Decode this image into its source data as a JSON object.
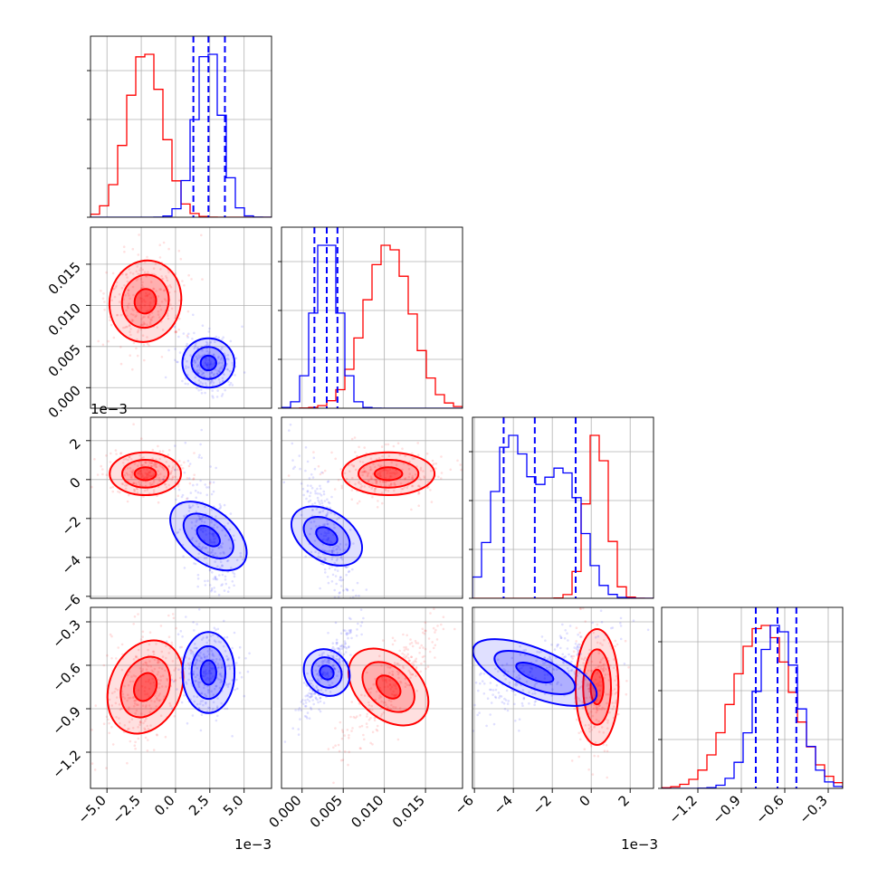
{
  "chart_data": {
    "type": "corner",
    "colors": {
      "red": "#ff0000",
      "blue": "#0000ff",
      "grid": "#b0b0b0"
    },
    "series": [
      {
        "color": "#ff0000"
      },
      {
        "color": "#0000ff"
      }
    ],
    "params": [
      {
        "range": [
          -6.2,
          7.0
        ],
        "ticks": [
          "-5.0",
          "-2.5",
          "0.0",
          "2.5",
          "5.0"
        ],
        "tick_values": [
          -5.0,
          -2.5,
          0.0,
          2.5,
          5.0
        ],
        "offset": "1e−3",
        "dist": {
          "red": {
            "mean": -2.2,
            "sd": 1.3
          },
          "blue": {
            "mean": 2.4,
            "sd": 0.95
          }
        },
        "quantiles_blue": [
          1.3,
          2.4,
          3.6
        ]
      },
      {
        "range": [
          -0.0025,
          0.0195
        ],
        "ticks": [
          "0.000",
          "0.005",
          "0.010",
          "0.015"
        ],
        "tick_values": [
          0.0,
          0.005,
          0.01,
          0.015
        ],
        "offset": "",
        "dist": {
          "red": {
            "mean": 0.0105,
            "sd": 0.0028
          },
          "blue": {
            "mean": 0.003,
            "sd": 0.0015
          }
        },
        "quantiles_blue": [
          0.0015,
          0.003,
          0.0043
        ]
      },
      {
        "range": [
          -6.1,
          3.2
        ],
        "ticks": [
          "-6",
          "-4",
          "-2",
          "0",
          "2"
        ],
        "tick_values": [
          -6,
          -4,
          -2,
          0,
          2
        ],
        "offset": "1e−3",
        "dist": {
          "red": {
            "mean": 0.3,
            "sd": 0.55
          },
          "blue": {
            "mean": -2.9,
            "sd": 1.7
          }
        },
        "quantiles_blue": [
          -4.5,
          -2.9,
          -0.8
        ]
      },
      {
        "range": [
          -1.45,
          -0.2
        ],
        "ticks": [
          "-1.2",
          "-0.9",
          "-0.6",
          "-0.3"
        ],
        "tick_values": [
          -1.2,
          -0.9,
          -0.6,
          -0.3
        ],
        "offset": "",
        "dist": {
          "red": {
            "mean": -0.75,
            "sd": 0.2
          },
          "blue": {
            "mean": -0.65,
            "sd": 0.14
          }
        },
        "quantiles_blue": [
          -0.8,
          -0.65,
          -0.52
        ]
      }
    ],
    "grid": true
  }
}
